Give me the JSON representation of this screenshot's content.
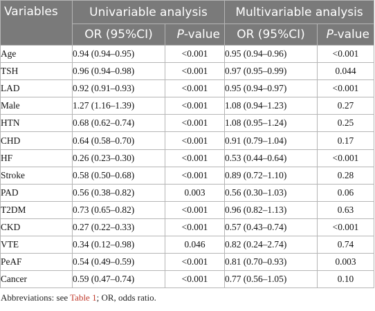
{
  "table": {
    "header": {
      "variables": "Variables",
      "univariable": "Univariable analysis",
      "multivariable": "Multivariable analysis",
      "or_ci": "OR (95%CI)",
      "p_prefix": "P",
      "p_suffix": "-value"
    },
    "rows": [
      {
        "variable": "Age",
        "uni_or": "0.94 (0.94–0.95)",
        "uni_p": "<0.001",
        "multi_or": "0.95 (0.94–0.96)",
        "multi_p": "<0.001"
      },
      {
        "variable": "TSH",
        "uni_or": "0.96 (0.94–0.98)",
        "uni_p": "<0.001",
        "multi_or": "0.97 (0.95–0.99)",
        "multi_p": "0.044"
      },
      {
        "variable": "LAD",
        "uni_or": "0.92 (0.91–0.93)",
        "uni_p": "<0.001",
        "multi_or": "0.95 (0.94–0.97)",
        "multi_p": "<0.001"
      },
      {
        "variable": "Male",
        "uni_or": "1.27 (1.16–1.39)",
        "uni_p": "<0.001",
        "multi_or": "1.08 (0.94–1.23)",
        "multi_p": "0.27"
      },
      {
        "variable": "HTN",
        "uni_or": "0.68 (0.62–0.74)",
        "uni_p": "<0.001",
        "multi_or": "1.08 (0.95–1.24)",
        "multi_p": "0.25"
      },
      {
        "variable": "CHD",
        "uni_or": "0.64 (0.58–0.70)",
        "uni_p": "<0.001",
        "multi_or": "0.91 (0.79–1.04)",
        "multi_p": "0.17"
      },
      {
        "variable": "HF",
        "uni_or": "0.26 (0.23–0.30)",
        "uni_p": "<0.001",
        "multi_or": "0.53 (0.44–0.64)",
        "multi_p": "<0.001"
      },
      {
        "variable": "Stroke",
        "uni_or": "0.58 (0.50–0.68)",
        "uni_p": "<0.001",
        "multi_or": "0.89 (0.72–1.10)",
        "multi_p": "0.28"
      },
      {
        "variable": "PAD",
        "uni_or": "0.56 (0.38–0.82)",
        "uni_p": "0.003",
        "multi_or": "0.56 (0.30–1.03)",
        "multi_p": "0.06"
      },
      {
        "variable": "T2DM",
        "uni_or": "0.73 (0.65–0.82)",
        "uni_p": "<0.001",
        "multi_or": "0.96 (0.82–1.13)",
        "multi_p": "0.63"
      },
      {
        "variable": "CKD",
        "uni_or": "0.27 (0.22–0.33)",
        "uni_p": "<0.001",
        "multi_or": "0.57 (0.43–0.74)",
        "multi_p": "<0.001"
      },
      {
        "variable": "VTE",
        "uni_or": "0.34 (0.12–0.98)",
        "uni_p": "0.046",
        "multi_or": "0.82 (0.24–2.74)",
        "multi_p": "0.74"
      },
      {
        "variable": "PeAF",
        "uni_or": "0.54 (0.49–0.59)",
        "uni_p": "<0.001",
        "multi_or": "0.81 (0.70–0.93)",
        "multi_p": "0.003"
      },
      {
        "variable": "Cancer",
        "uni_or": "0.59 (0.47–0.74)",
        "uni_p": "<0.001",
        "multi_or": "0.77 (0.56–1.05)",
        "multi_p": "0.10"
      }
    ]
  },
  "footnote": {
    "prefix": "Abbreviations: see ",
    "link": "Table 1",
    "suffix": "; OR, odds ratio."
  },
  "colors": {
    "header_bg": "#7a7a7a",
    "header_text": "#ffffff",
    "link": "#c0392b"
  }
}
